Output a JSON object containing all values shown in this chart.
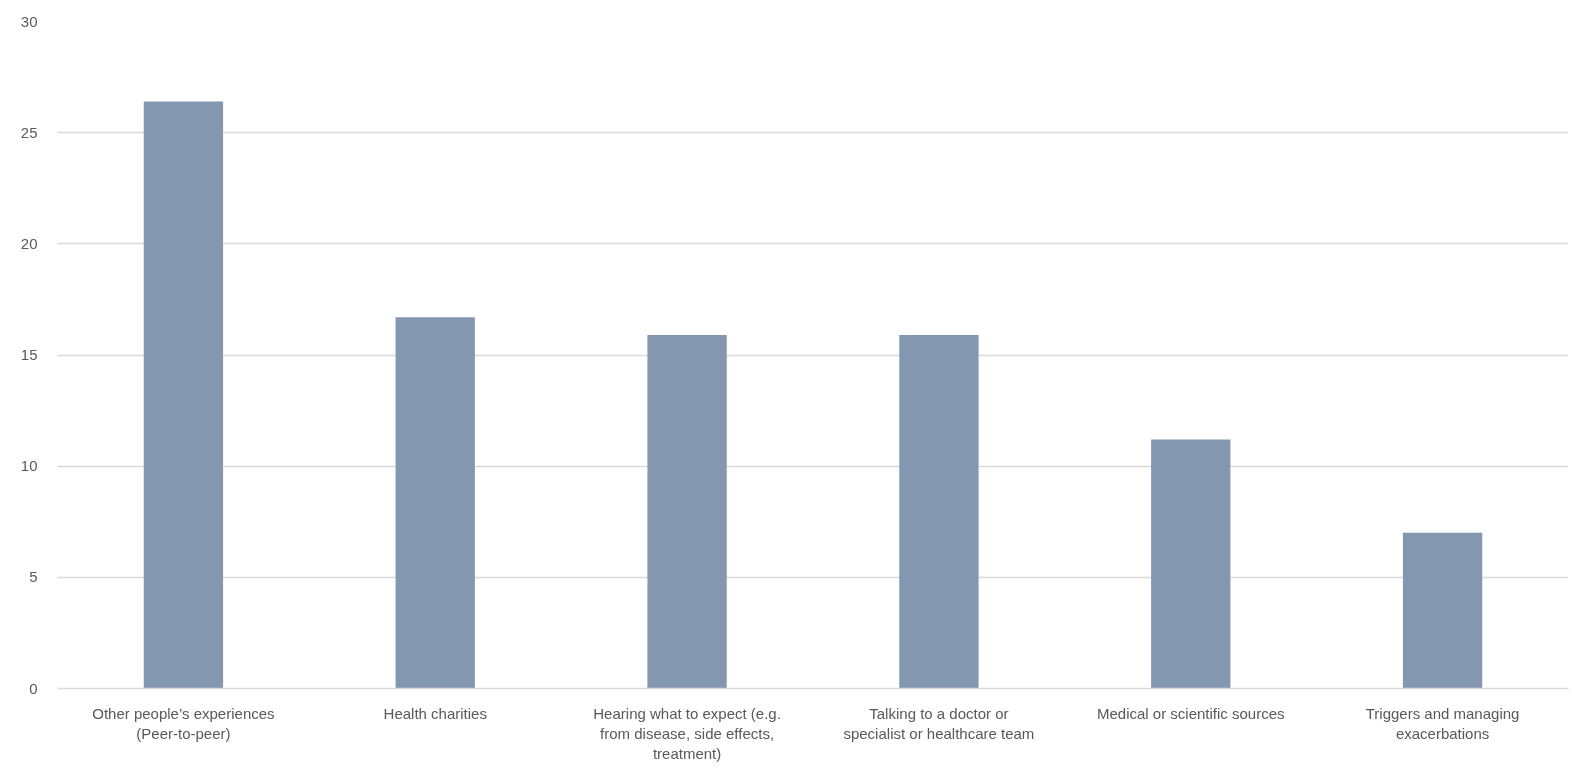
{
  "chart_data": {
    "type": "bar",
    "categories": [
      "Other people’s experiences (Peer-to-peer)",
      "Health charities",
      "Hearing what to expect (e.g. from disease, side effects, treatment)",
      "Talking to a doctor or specialist or healthcare team",
      "Medical or scientific sources",
      "Triggers and managing exacerbations"
    ],
    "values": [
      26.4,
      16.7,
      15.9,
      15.9,
      11.2,
      7.0
    ],
    "color": "#8497b0",
    "ylim": [
      0,
      30
    ],
    "yticks": [
      0,
      5,
      10,
      15,
      20,
      25,
      30
    ],
    "grid": "y"
  }
}
